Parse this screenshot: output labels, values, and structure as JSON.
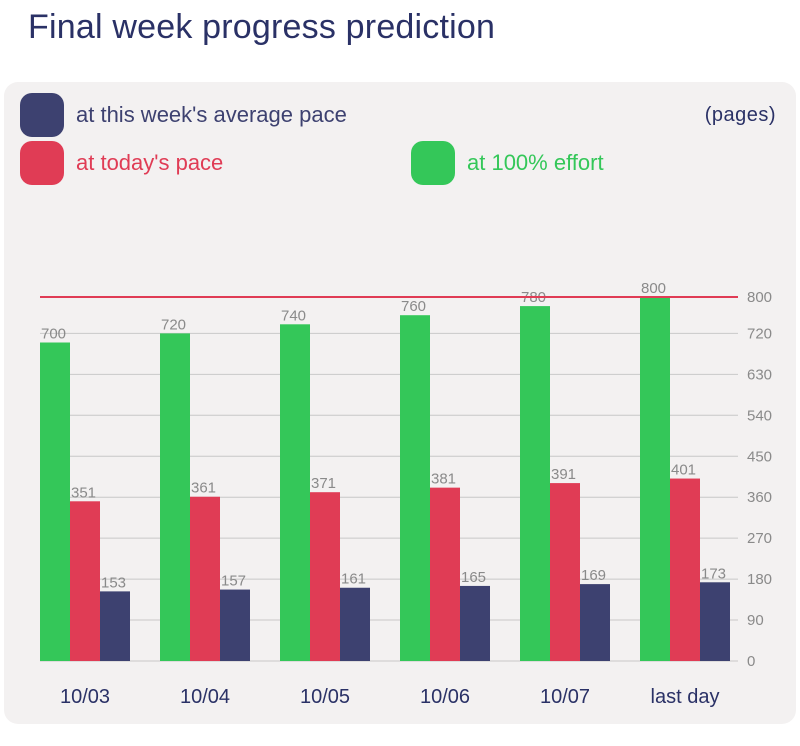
{
  "title": "Final week progress prediction",
  "unit": "(pages)",
  "colors": {
    "effort": "#34c759",
    "today": "#e03c55",
    "average": "#3d4170",
    "target": "#e03c55",
    "grid": "#c8c8c8",
    "tick": "#8a8a8a",
    "category": "#2a3166"
  },
  "legend": [
    {
      "label": "at this week's average pace",
      "color": "#3d4170"
    },
    {
      "label": "at today's pace",
      "color": "#e03c55"
    },
    {
      "label": "at 100% effort",
      "color": "#34c759"
    }
  ],
  "chart_data": {
    "type": "bar",
    "categories": [
      "10/03",
      "10/04",
      "10/05",
      "10/06",
      "10/07",
      "last day"
    ],
    "series": [
      {
        "name": "at 100% effort",
        "values": [
          700,
          720,
          740,
          760,
          780,
          800
        ]
      },
      {
        "name": "at today's pace",
        "values": [
          351,
          361,
          371,
          381,
          391,
          401
        ]
      },
      {
        "name": "at this week's average pace",
        "values": [
          153,
          157,
          161,
          165,
          169,
          173
        ]
      }
    ],
    "target_line": 800,
    "ylim": [
      0,
      800
    ],
    "yticks": [
      0,
      90,
      180,
      270,
      360,
      450,
      540,
      630,
      720,
      800
    ],
    "grid": true,
    "y_axis_position": "right",
    "legend_position": "top"
  }
}
